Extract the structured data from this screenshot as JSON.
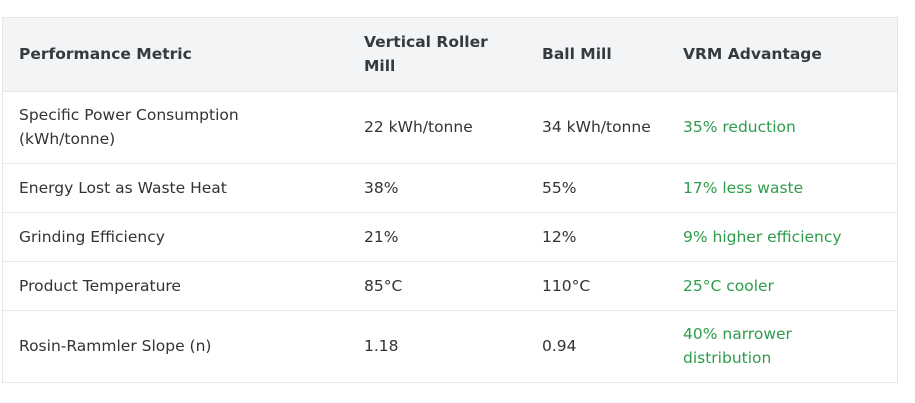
{
  "table": {
    "headers": {
      "metric": "Performance Metric",
      "vrm": "Vertical Roller Mill",
      "ball": "Ball Mill",
      "advantage": "VRM Advantage"
    },
    "rows": [
      {
        "metric": "Specific Power Consumption (kWh/tonne)",
        "vrm": "22 kWh/tonne",
        "ball": "34 kWh/tonne",
        "advantage": "35% reduction"
      },
      {
        "metric": "Energy Lost as Waste Heat",
        "vrm": "38%",
        "ball": "55%",
        "advantage": "17% less waste"
      },
      {
        "metric": "Grinding Efficiency",
        "vrm": "21%",
        "ball": "12%",
        "advantage": "9% higher efficiency"
      },
      {
        "metric": "Product Temperature",
        "vrm": "85°C",
        "ball": "110°C",
        "advantage": "25°C cooler"
      },
      {
        "metric": "Rosin-Rammler Slope (n)",
        "vrm": "1.18",
        "ball": "0.94",
        "advantage": "40% narrower distribution"
      }
    ]
  },
  "colors": {
    "header_bg": "#f3f4f6",
    "border": "#e4e6ea",
    "advantage_text": "#2e9c4a"
  }
}
